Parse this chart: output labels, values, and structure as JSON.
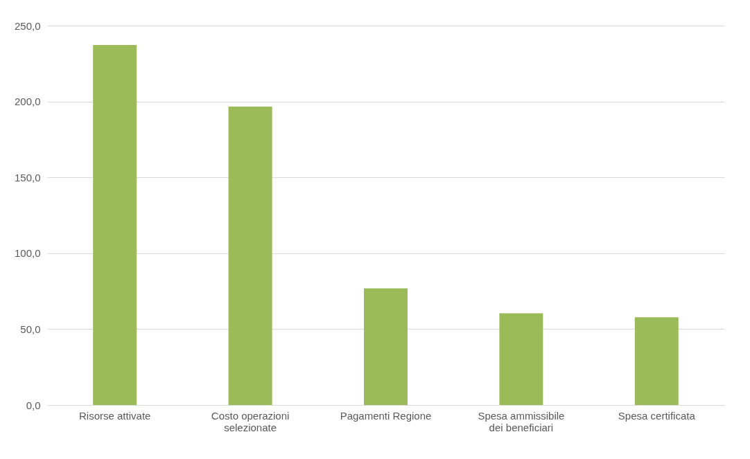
{
  "chart_data": {
    "type": "bar",
    "categories": [
      "Risorse attivate",
      "Costo operazioni selezionate",
      "Pagamenti Regione",
      "Spesa ammissibile dei beneficiari",
      "Spesa certificata"
    ],
    "values": [
      237.2,
      196.6,
      76.9,
      60.4,
      57.8
    ],
    "color": "#9bbb59",
    "ylim": [
      0,
      250
    ],
    "yticks": [
      {
        "value": 0,
        "label": "0,0"
      },
      {
        "value": 50,
        "label": "50,0"
      },
      {
        "value": 100,
        "label": "100,0"
      },
      {
        "value": 150,
        "label": "150,0"
      },
      {
        "value": 200,
        "label": "200,0"
      },
      {
        "value": 250,
        "label": "250,0"
      }
    ],
    "grid": "y"
  }
}
